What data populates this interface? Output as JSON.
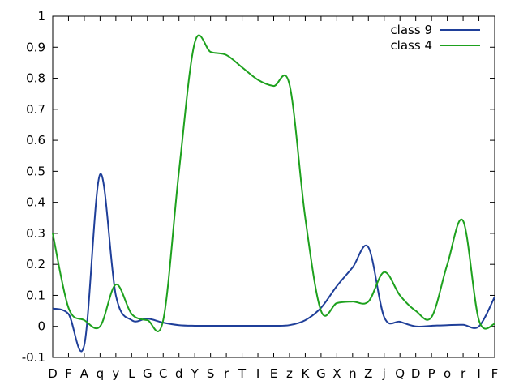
{
  "chart_data": {
    "type": "line",
    "title": "",
    "xlabel": "",
    "ylabel": "",
    "categories": [
      "D",
      "F",
      "A",
      "q",
      "y",
      "L",
      "G",
      "C",
      "d",
      "Y",
      "S",
      "r",
      "T",
      "I",
      "E",
      "z",
      "K",
      "G",
      "X",
      "n",
      "Z",
      "j",
      "Q",
      "D",
      "P",
      "o",
      "r",
      "I",
      "F"
    ],
    "ylim": [
      -0.1,
      1
    ],
    "yticks": [
      -0.1,
      0,
      0.1,
      0.2,
      0.3,
      0.4,
      0.5,
      0.6,
      0.7,
      0.8,
      0.9,
      1
    ],
    "ytick_labels": [
      "-0.1",
      "0",
      "0.1",
      "0.2",
      "0.3",
      "0.4",
      "0.5",
      "0.6",
      "0.7",
      "0.8",
      "0.9",
      "1"
    ],
    "grid": false,
    "legend_position": "top-right",
    "series": [
      {
        "name": "class 9",
        "color": "#1f3f99",
        "values": [
          0.058,
          0.04,
          -0.06,
          0.49,
          0.1,
          0.02,
          0.025,
          0.012,
          0.004,
          0.002,
          0.002,
          0.002,
          0.002,
          0.002,
          0.002,
          0.004,
          0.02,
          0.06,
          0.13,
          0.19,
          0.255,
          0.03,
          0.015,
          0.0,
          0.002,
          0.004,
          0.005,
          0.0,
          0.095
        ]
      },
      {
        "name": "class 4",
        "color": "#1ea11e",
        "values": [
          0.3,
          0.06,
          0.02,
          0.0,
          0.135,
          0.04,
          0.02,
          0.02,
          0.5,
          0.915,
          0.885,
          0.875,
          0.835,
          0.795,
          0.775,
          0.78,
          0.35,
          0.05,
          0.075,
          0.08,
          0.08,
          0.175,
          0.1,
          0.05,
          0.03,
          0.2,
          0.34,
          0.02,
          0.008
        ]
      }
    ]
  }
}
